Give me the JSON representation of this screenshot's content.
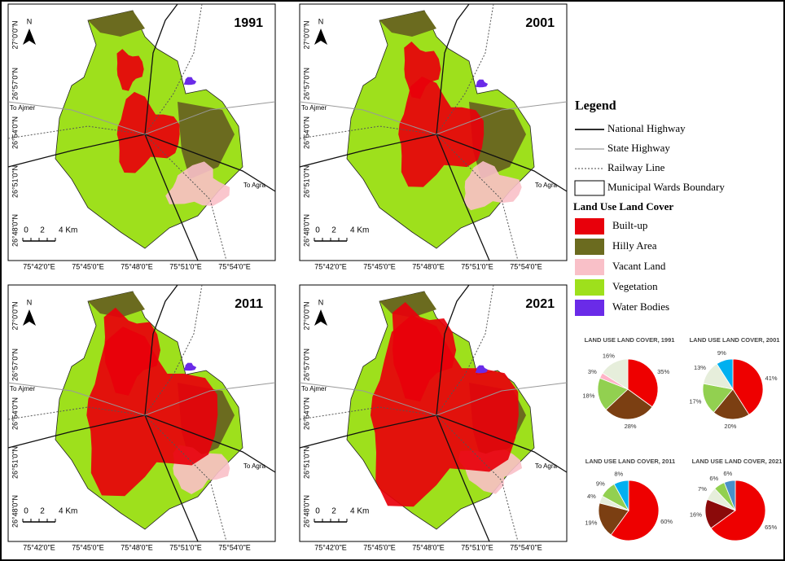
{
  "maps": [
    {
      "year": "1991",
      "north": "N",
      "scale": [
        "0",
        "2",
        "4 Km"
      ],
      "to_left": "To Ajmer",
      "to_right": "To Agra"
    },
    {
      "year": "2001",
      "north": "N",
      "scale": [
        "0",
        "2",
        "4 Km"
      ],
      "to_left": "To Ajmer",
      "to_right": "To Agra"
    },
    {
      "year": "2011",
      "north": "N",
      "scale": [
        "0",
        "2",
        "4 Km"
      ],
      "to_left": "To Ajmer",
      "to_right": "To Agra"
    },
    {
      "year": "2021",
      "north": "N",
      "scale": [
        "0",
        "2",
        "4 Km"
      ],
      "to_left": "To Ajmer",
      "to_right": "To Agra"
    }
  ],
  "lat_labels": [
    "27°0'0\"N",
    "26°57'0\"N",
    "26°54'0\"N",
    "26°51'0\"N",
    "26°48'0\"N"
  ],
  "lon_labels": [
    "75°42'0\"E",
    "75°45'0\"E",
    "75°48'0\"E",
    "75°51'0\"E",
    "75°54'0\"E"
  ],
  "legend": {
    "title": "Legend",
    "lines": [
      {
        "label": "National Highway",
        "style": "national"
      },
      {
        "label": "State Highway",
        "style": "state"
      },
      {
        "label": "Railway Line",
        "style": "railway"
      },
      {
        "label": "Municipal Wards Boundary",
        "style": "ward"
      }
    ],
    "lulc_title": "Land Use Land Cover",
    "classes": [
      {
        "label": "Built-up",
        "color": "#e8000b"
      },
      {
        "label": "Hilly Area",
        "color": "#6b6b1f"
      },
      {
        "label": "Vacant Land",
        "color": "#f9c0c8"
      },
      {
        "label": "Vegetation",
        "color": "#9ee01c"
      },
      {
        "label": "Water Bodies",
        "color": "#6a2be8"
      }
    ]
  },
  "chart_data": [
    {
      "type": "pie",
      "title": "LAND USE LAND COVER, 1991",
      "values": [
        35,
        28,
        18,
        3,
        16
      ],
      "value_labels": [
        "35%",
        "28%",
        "18%",
        "3%",
        "16%"
      ],
      "colors": [
        "#ee0000",
        "#7b3f12",
        "#92d050",
        "#ffb3c6",
        "#e6eedb"
      ]
    },
    {
      "type": "pie",
      "title": "LAND USE LAND COVER, 2001",
      "values": [
        41,
        20,
        17,
        13,
        9
      ],
      "value_labels": [
        "41%",
        "20%",
        "17%",
        "13%",
        "9%"
      ],
      "colors": [
        "#ee0000",
        "#7b3f12",
        "#92d050",
        "#e6eedb",
        "#00b0f0"
      ]
    },
    {
      "type": "pie",
      "title": "LAND USE LAND COVER, 2011",
      "values": [
        60,
        19,
        4,
        9,
        8
      ],
      "value_labels": [
        "60%",
        "19%",
        "4%",
        "9%",
        "8%"
      ],
      "colors": [
        "#ee0000",
        "#7b3f12",
        "#e6eedb",
        "#92d050",
        "#00b0f0"
      ]
    },
    {
      "type": "pie",
      "title": "LAND USE LAND COVER, 2021",
      "values": [
        65,
        16,
        7,
        6,
        6
      ],
      "value_labels": [
        "65%",
        "16%",
        "7%",
        "6%",
        "6%"
      ],
      "colors": [
        "#ee0000",
        "#8b0a0a",
        "#e6eedb",
        "#92d050",
        "#4a90c8"
      ]
    }
  ]
}
